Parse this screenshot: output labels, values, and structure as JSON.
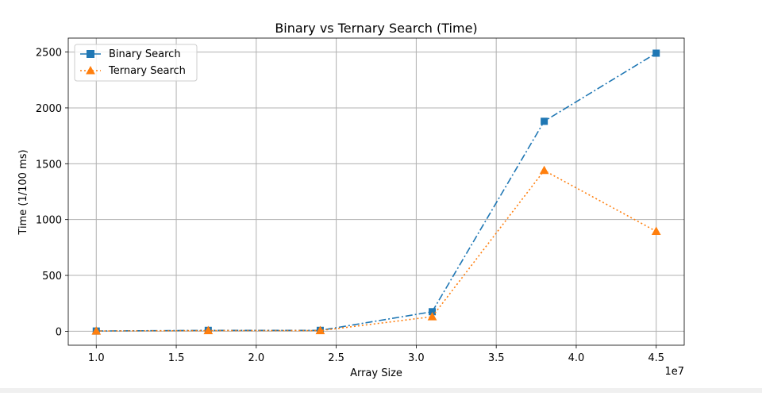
{
  "chart_data": {
    "type": "line",
    "title": "Binary vs Ternary Search (Time)",
    "xlabel": "Array Size",
    "ylabel": "Time (1/100 ms)",
    "x_offset_label": "1e7",
    "x": [
      10000000,
      17000000,
      24000000,
      31000000,
      38000000,
      45000000
    ],
    "xlim": [
      8250000,
      46750000
    ],
    "ylim": [
      -125,
      2625
    ],
    "x_ticks": [
      10000000,
      15000000,
      20000000,
      25000000,
      30000000,
      35000000,
      40000000,
      45000000
    ],
    "x_tick_labels": [
      "1.0",
      "1.5",
      "2.0",
      "2.5",
      "3.0",
      "3.5",
      "4.0",
      "4.5"
    ],
    "y_ticks": [
      0,
      500,
      1000,
      1500,
      2000,
      2500
    ],
    "y_tick_labels": [
      "0",
      "500",
      "1000",
      "1500",
      "2000",
      "2500"
    ],
    "grid": true,
    "legend_position": "top-left",
    "series": [
      {
        "name": "Binary Search",
        "values": [
          2,
          8,
          8,
          175,
          1880,
          2490
        ],
        "color": "#1f77b4",
        "marker": "square",
        "linestyle": "dashdot"
      },
      {
        "name": "Ternary Search",
        "values": [
          2,
          6,
          6,
          130,
          1440,
          895
        ],
        "color": "#ff7f0e",
        "marker": "triangle-up",
        "linestyle": "dotted"
      }
    ]
  }
}
